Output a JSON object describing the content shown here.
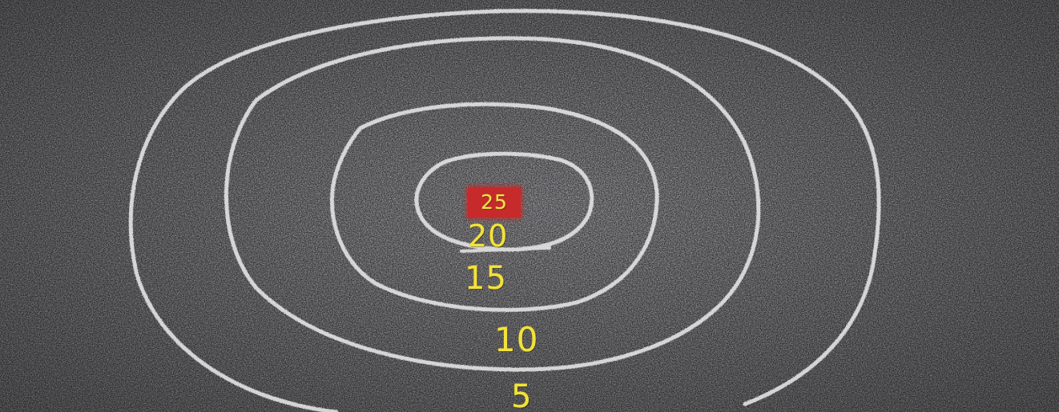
{
  "scene": {
    "surface_color": "#3a3a3c",
    "chalk_color": "#e6e6e6",
    "number_color": "#f2e23a",
    "highlight_color": "#c62a2a"
  },
  "target": {
    "ring_count": 4,
    "scores": [
      "25",
      "20",
      "15",
      "10",
      "5"
    ]
  }
}
